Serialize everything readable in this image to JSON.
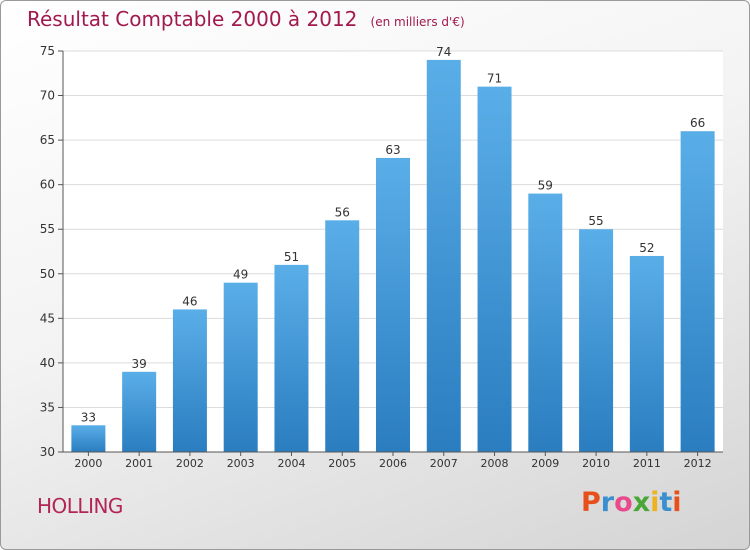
{
  "chart_data": {
    "type": "bar",
    "title": "Résultat Comptable 2000 à 2012",
    "subtitle": "(en milliers d'€)",
    "categories": [
      "2000",
      "2001",
      "2002",
      "2003",
      "2004",
      "2005",
      "2006",
      "2007",
      "2008",
      "2009",
      "2010",
      "2011",
      "2012"
    ],
    "values": [
      33,
      39,
      46,
      49,
      51,
      56,
      63,
      74,
      71,
      59,
      55,
      52,
      66
    ],
    "ylim": [
      30,
      75
    ],
    "yticks": [
      30,
      35,
      40,
      45,
      50,
      55,
      60,
      65,
      70,
      75
    ],
    "grid": true,
    "bar_color_top": "#5aaee8",
    "bar_color_bottom": "#2a7dbf"
  },
  "footer": {
    "city": "HOLLING",
    "logo": "Proxiti"
  },
  "colors": {
    "title": "#a2194e",
    "city": "#b32557",
    "logo_letters": [
      "#e8501b",
      "#3a8fd0",
      "#e84a8c",
      "#4aa637",
      "#f0b020",
      "#3a8fd0",
      "#e8501b"
    ]
  }
}
